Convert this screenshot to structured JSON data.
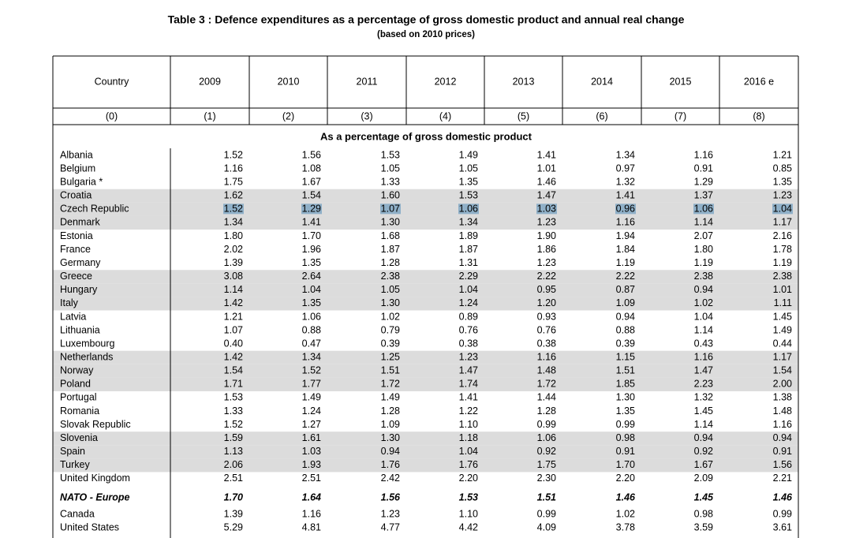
{
  "header": {
    "title": "Table 3 : Defence expenditures as a percentage of gross domestic product and annual real change",
    "subtitle": "(based on 2010 prices)"
  },
  "table": {
    "columns": [
      "Country",
      "2009",
      "2010",
      "2011",
      "2012",
      "2013",
      "2014",
      "2015",
      "2016 e"
    ],
    "column_numbers": [
      "(0)",
      "(1)",
      "(2)",
      "(3)",
      "(4)",
      "(5)",
      "(6)",
      "(7)",
      "(8)"
    ],
    "section": "As a percentage of gross domestic product",
    "rows": [
      {
        "country": "Albania",
        "values": [
          "1.52",
          "1.56",
          "1.53",
          "1.49",
          "1.41",
          "1.34",
          "1.16",
          "1.21"
        ]
      },
      {
        "country": "Belgium",
        "values": [
          "1.16",
          "1.08",
          "1.05",
          "1.05",
          "1.01",
          "0.97",
          "0.91",
          "0.85"
        ]
      },
      {
        "country": "Bulgaria *",
        "values": [
          "1.75",
          "1.67",
          "1.33",
          "1.35",
          "1.46",
          "1.32",
          "1.29",
          "1.35"
        ]
      },
      {
        "country": "Croatia",
        "values": [
          "1.62",
          "1.54",
          "1.60",
          "1.53",
          "1.47",
          "1.41",
          "1.37",
          "1.23"
        ]
      },
      {
        "country": "Czech Republic",
        "values": [
          "1.52",
          "1.29",
          "1.07",
          "1.06",
          "1.03",
          "0.96",
          "1.06",
          "1.04"
        ]
      },
      {
        "country": "Denmark",
        "values": [
          "1.34",
          "1.41",
          "1.30",
          "1.34",
          "1.23",
          "1.16",
          "1.14",
          "1.17"
        ]
      },
      {
        "country": "Estonia",
        "values": [
          "1.80",
          "1.70",
          "1.68",
          "1.89",
          "1.90",
          "1.94",
          "2.07",
          "2.16"
        ]
      },
      {
        "country": "France",
        "values": [
          "2.02",
          "1.96",
          "1.87",
          "1.87",
          "1.86",
          "1.84",
          "1.80",
          "1.78"
        ]
      },
      {
        "country": "Germany",
        "values": [
          "1.39",
          "1.35",
          "1.28",
          "1.31",
          "1.23",
          "1.19",
          "1.19",
          "1.19"
        ]
      },
      {
        "country": "Greece",
        "values": [
          "3.08",
          "2.64",
          "2.38",
          "2.29",
          "2.22",
          "2.22",
          "2.38",
          "2.38"
        ]
      },
      {
        "country": "Hungary",
        "values": [
          "1.14",
          "1.04",
          "1.05",
          "1.04",
          "0.95",
          "0.87",
          "0.94",
          "1.01"
        ]
      },
      {
        "country": "Italy",
        "values": [
          "1.42",
          "1.35",
          "1.30",
          "1.24",
          "1.20",
          "1.09",
          "1.02",
          "1.11"
        ]
      },
      {
        "country": "Latvia",
        "values": [
          "1.21",
          "1.06",
          "1.02",
          "0.89",
          "0.93",
          "0.94",
          "1.04",
          "1.45"
        ]
      },
      {
        "country": "Lithuania",
        "values": [
          "1.07",
          "0.88",
          "0.79",
          "0.76",
          "0.76",
          "0.88",
          "1.14",
          "1.49"
        ]
      },
      {
        "country": "Luxembourg",
        "values": [
          "0.40",
          "0.47",
          "0.39",
          "0.38",
          "0.38",
          "0.39",
          "0.43",
          "0.44"
        ]
      },
      {
        "country": "Netherlands",
        "values": [
          "1.42",
          "1.34",
          "1.25",
          "1.23",
          "1.16",
          "1.15",
          "1.16",
          "1.17"
        ]
      },
      {
        "country": "Norway",
        "values": [
          "1.54",
          "1.52",
          "1.51",
          "1.47",
          "1.48",
          "1.51",
          "1.47",
          "1.54"
        ]
      },
      {
        "country": "Poland",
        "values": [
          "1.71",
          "1.77",
          "1.72",
          "1.74",
          "1.72",
          "1.85",
          "2.23",
          "2.00"
        ]
      },
      {
        "country": "Portugal",
        "values": [
          "1.53",
          "1.49",
          "1.49",
          "1.41",
          "1.44",
          "1.30",
          "1.32",
          "1.38"
        ]
      },
      {
        "country": "Romania",
        "values": [
          "1.33",
          "1.24",
          "1.28",
          "1.22",
          "1.28",
          "1.35",
          "1.45",
          "1.48"
        ]
      },
      {
        "country": "Slovak Republic",
        "values": [
          "1.52",
          "1.27",
          "1.09",
          "1.10",
          "0.99",
          "0.99",
          "1.14",
          "1.16"
        ]
      },
      {
        "country": "Slovenia",
        "values": [
          "1.59",
          "1.61",
          "1.30",
          "1.18",
          "1.06",
          "0.98",
          "0.94",
          "0.94"
        ]
      },
      {
        "country": "Spain",
        "values": [
          "1.13",
          "1.03",
          "0.94",
          "1.04",
          "0.92",
          "0.91",
          "0.92",
          "0.91"
        ]
      },
      {
        "country": "Turkey",
        "values": [
          "2.06",
          "1.93",
          "1.76",
          "1.76",
          "1.75",
          "1.70",
          "1.67",
          "1.56"
        ]
      },
      {
        "country": "United Kingdom",
        "values": [
          "2.51",
          "2.51",
          "2.42",
          "2.20",
          "2.30",
          "2.20",
          "2.09",
          "2.21"
        ]
      }
    ],
    "total_row": {
      "country": "NATO - Europe",
      "values": [
        "1.70",
        "1.64",
        "1.56",
        "1.53",
        "1.51",
        "1.46",
        "1.45",
        "1.46"
      ]
    },
    "other_rows": [
      {
        "country": "Canada",
        "values": [
          "1.39",
          "1.16",
          "1.23",
          "1.10",
          "0.99",
          "1.02",
          "0.98",
          "0.99"
        ]
      },
      {
        "country": "United States",
        "values": [
          "5.29",
          "4.81",
          "4.77",
          "4.42",
          "4.09",
          "3.78",
          "3.59",
          "3.61"
        ]
      }
    ]
  }
}
